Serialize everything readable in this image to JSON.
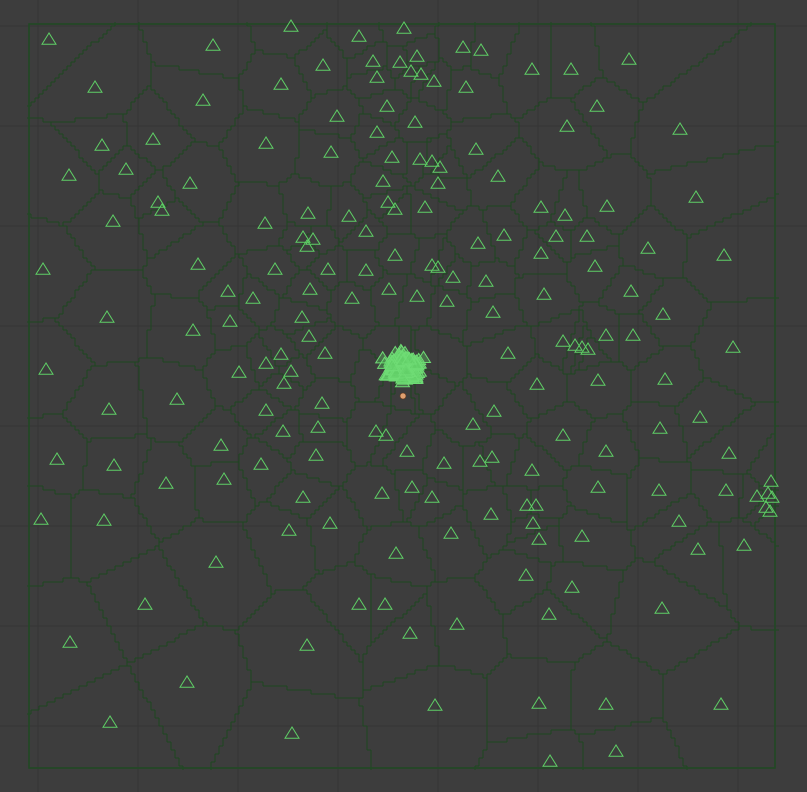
{
  "viewport": {
    "name": "voronoi-scatter-viewport",
    "colors": {
      "background": "#3d3d3d",
      "grid": "#353535",
      "cell_edge": "#1d4620",
      "bounds": "#1f4a22",
      "marker": "#5fcf66",
      "origin_marker": "#e0a070"
    },
    "marker_shape": "triangle-outline",
    "origin_marker_shape": "dot"
  }
}
